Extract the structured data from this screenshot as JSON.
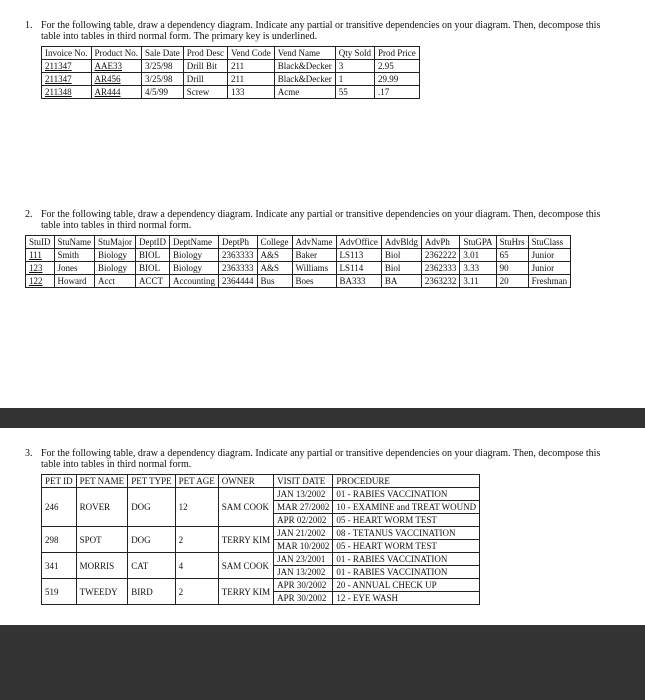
{
  "q1": {
    "num": "1.",
    "text": "For the following table, draw a dependency diagram. Indicate any partial or transitive dependencies on your diagram. Then, decompose this table into tables in third normal form. The primary key is underlined.",
    "headers": [
      "Invoice No.",
      "Product No.",
      "Sale Date",
      "Prod Desc",
      "Vend Code",
      "Vend Name",
      "Qty Sold",
      "Prod Price"
    ],
    "rows": [
      [
        "211347",
        "AAE33",
        "3/25/98",
        "Drill Bit",
        "211",
        "Black&Decker",
        "3",
        "2.95"
      ],
      [
        "211347",
        "AR456",
        "3/25/98",
        "Drill",
        "211",
        "Black&Decker",
        "1",
        "29.99"
      ],
      [
        "211348",
        "AR444",
        "4/5/99",
        "Screw",
        "133",
        "Acme",
        "55",
        ".17"
      ]
    ]
  },
  "q2": {
    "num": "2.",
    "text": "For the following table, draw a dependency diagram. Indicate any partial or transitive dependencies on your diagram. Then, decompose this table into tables in third normal form.",
    "headers": [
      "StuID",
      "StuName",
      "StuMajor",
      "DeptID",
      "DeptName",
      "DeptPh",
      "College",
      "AdvName",
      "AdvOffice",
      "AdvBldg",
      "AdvPh",
      "StuGPA",
      "StuHrs",
      "StuClass"
    ],
    "rows": [
      [
        "111",
        "Smith",
        "Biology",
        "BIOL",
        "Biology",
        "2363333",
        "A&S",
        "Baker",
        "LS113",
        "Biol",
        "2362222",
        "3.01",
        "65",
        "Junior"
      ],
      [
        "123",
        "Jones",
        "Biology",
        "BIOL",
        "Biology",
        "2363333",
        "A&S",
        "Williams",
        "LS114",
        "Biol",
        "2362333",
        "3.33",
        "90",
        "Junior"
      ],
      [
        "122",
        "Howard",
        "Acct",
        "ACCT",
        "Accounting",
        "2364444",
        "Bus",
        "Boes",
        "BA333",
        "BA",
        "2363232",
        "3.11",
        "20",
        "Freshman"
      ]
    ]
  },
  "q3": {
    "num": "3.",
    "text": "For the following table, draw a dependency diagram. Indicate any partial or transitive dependencies on your diagram. Then, decompose this table into tables in third normal form.",
    "headers": [
      "PET ID",
      "PET NAME",
      "PET TYPE",
      "PET AGE",
      "OWNER",
      "VISIT DATE",
      "PROCEDURE"
    ],
    "rows": [
      [
        "246",
        "ROVER",
        "DOG",
        "12",
        "SAM COOK",
        "JAN 13/2002",
        "01 - RABIES VACCINATION"
      ],
      [
        "",
        "",
        "",
        "",
        "",
        "MAR 27/2002",
        "10 - EXAMINE and TREAT WOUND"
      ],
      [
        "",
        "",
        "",
        "",
        "",
        "APR 02/2002",
        "05 - HEART WORM TEST"
      ],
      [
        "298",
        "SPOT",
        "DOG",
        "2",
        "TERRY KIM",
        "JAN 21/2002",
        "08 - TETANUS VACCINATION"
      ],
      [
        "",
        "",
        "",
        "",
        "",
        "MAR 10/2002",
        "05 - HEART WORM TEST"
      ],
      [
        "341",
        "MORRIS",
        "CAT",
        "4",
        "SAM COOK",
        "JAN 23/2001",
        "01 - RABIES VACCINATION"
      ],
      [
        "",
        "",
        "",
        "",
        "",
        "JAN 13/2002",
        "01 - RABIES VACCINATION"
      ],
      [
        "519",
        "TWEEDY",
        "BIRD",
        "2",
        "TERRY KIM",
        "APR 30/2002",
        "20 - ANNUAL CHECK UP"
      ],
      [
        "",
        "",
        "",
        "",
        "",
        "APR 30/2002",
        "12 - EYE WASH"
      ]
    ],
    "spans": [
      {
        "row": 0,
        "cols": [
          3,
          3,
          3,
          3,
          3,
          1,
          1
        ]
      },
      {
        "row": 3,
        "cols": [
          2,
          2,
          2,
          2,
          2,
          1,
          1
        ]
      },
      {
        "row": 5,
        "cols": [
          2,
          2,
          2,
          2,
          2,
          1,
          1
        ]
      },
      {
        "row": 7,
        "cols": [
          2,
          2,
          2,
          2,
          2,
          1,
          1
        ]
      }
    ]
  }
}
